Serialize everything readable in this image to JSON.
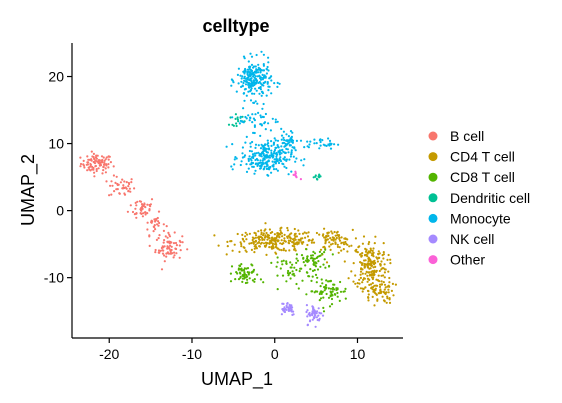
{
  "chart_data": {
    "type": "scatter",
    "title": "celltype",
    "xlabel": "UMAP_1",
    "ylabel": "UMAP_2",
    "xlim": [
      -24.5,
      15.5
    ],
    "ylim": [
      -19,
      25
    ],
    "xticks": [
      -20,
      -10,
      0,
      10
    ],
    "yticks": [
      -10,
      0,
      10,
      20
    ],
    "xtick_labels": [
      "-20",
      "-10",
      "0",
      "10"
    ],
    "ytick_labels": [
      "-10",
      "0",
      "10",
      "20"
    ],
    "grid": false,
    "legend_position": "right",
    "series": [
      {
        "name": "B cell",
        "color": "#F8766D",
        "clusters": [
          {
            "cx": -21.5,
            "cy": 7,
            "sx": 1.2,
            "sy": 0.9,
            "n": 90
          },
          {
            "cx": -18.5,
            "cy": 3.5,
            "sx": 1.0,
            "sy": 1.0,
            "n": 40
          },
          {
            "cx": -16.0,
            "cy": 0.5,
            "sx": 1.0,
            "sy": 1.0,
            "n": 40
          },
          {
            "cx": -14.5,
            "cy": -2.0,
            "sx": 0.8,
            "sy": 1.0,
            "n": 30
          },
          {
            "cx": -12.8,
            "cy": -5.5,
            "sx": 1.0,
            "sy": 1.2,
            "n": 70
          }
        ]
      },
      {
        "name": "CD4 T cell",
        "color": "#C49A00",
        "clusters": [
          {
            "cx": 0,
            "cy": -4.5,
            "sx": 3.2,
            "sy": 1.0,
            "n": 250
          },
          {
            "cx": 7.0,
            "cy": -4.5,
            "sx": 1.5,
            "sy": 1.0,
            "n": 80
          },
          {
            "cx": 11.5,
            "cy": -8.0,
            "sx": 1.3,
            "sy": 2.2,
            "n": 180
          },
          {
            "cx": 12.5,
            "cy": -12.0,
            "sx": 1.2,
            "sy": 1.2,
            "n": 80
          }
        ]
      },
      {
        "name": "CD8 T cell",
        "color": "#53B400",
        "clusters": [
          {
            "cx": -3.5,
            "cy": -9.5,
            "sx": 1.0,
            "sy": 1.0,
            "n": 60
          },
          {
            "cx": 4.5,
            "cy": -7.5,
            "sx": 1.2,
            "sy": 1.0,
            "n": 60
          },
          {
            "cx": 6.5,
            "cy": -12.0,
            "sx": 1.5,
            "sy": 1.2,
            "n": 70
          },
          {
            "cx": 2.0,
            "cy": -9.0,
            "sx": 1.5,
            "sy": 1.2,
            "n": 40
          }
        ]
      },
      {
        "name": "Dendritic cell",
        "color": "#00C094",
        "clusters": [
          {
            "cx": -4.5,
            "cy": 13.5,
            "sx": 0.6,
            "sy": 0.5,
            "n": 15
          },
          {
            "cx": 5.0,
            "cy": 5.0,
            "sx": 0.4,
            "sy": 0.3,
            "n": 10
          }
        ]
      },
      {
        "name": "Monocyte",
        "color": "#00B6EB",
        "clusters": [
          {
            "cx": -2.5,
            "cy": 19.5,
            "sx": 1.3,
            "sy": 1.8,
            "n": 220
          },
          {
            "cx": -1.0,
            "cy": 8.0,
            "sx": 2.0,
            "sy": 1.5,
            "n": 250
          },
          {
            "cx": 1.5,
            "cy": 10.5,
            "sx": 1.0,
            "sy": 1.0,
            "n": 40
          },
          {
            "cx": 5.5,
            "cy": 10.0,
            "sx": 1.2,
            "sy": 0.5,
            "n": 30
          },
          {
            "cx": -2.0,
            "cy": 13.5,
            "sx": 1.5,
            "sy": 1.0,
            "n": 40
          }
        ]
      },
      {
        "name": "NK cell",
        "color": "#A58AFF",
        "clusters": [
          {
            "cx": 1.5,
            "cy": -14.5,
            "sx": 0.7,
            "sy": 0.7,
            "n": 40
          },
          {
            "cx": 4.8,
            "cy": -15.5,
            "sx": 0.6,
            "sy": 0.9,
            "n": 50
          }
        ]
      },
      {
        "name": "Other",
        "color": "#FB61D7",
        "clusters": [
          {
            "cx": 2.6,
            "cy": 5.3,
            "sx": 0.25,
            "sy": 0.35,
            "n": 8
          }
        ]
      }
    ]
  }
}
